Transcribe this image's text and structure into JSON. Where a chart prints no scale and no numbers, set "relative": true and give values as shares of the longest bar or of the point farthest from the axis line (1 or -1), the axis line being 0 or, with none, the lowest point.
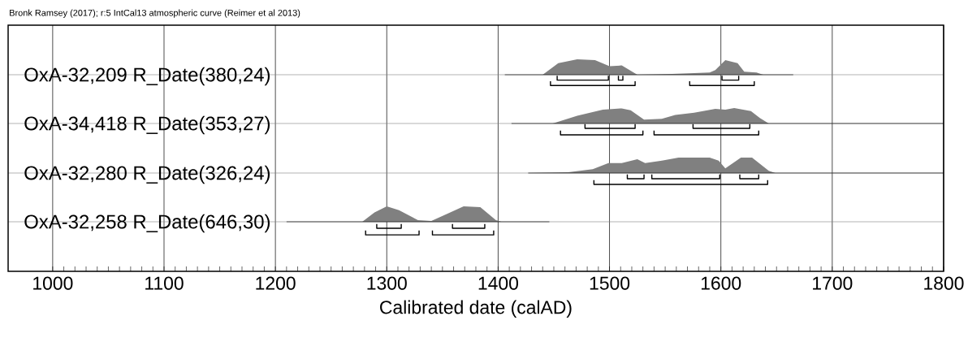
{
  "chart_data": [
    {
      "type": "area",
      "relative": true,
      "title": "Bronk Ramsey (2017); r:5 IntCal13 atmospheric curve (Reimer et al 2013)",
      "xlim": [
        960,
        1800
      ],
      "xticks": [
        1000,
        1100,
        1200,
        1300,
        1400,
        1500,
        1600,
        1700,
        1800
      ],
      "grid": "x",
      "tick_labels": false,
      "series": [
        {
          "name": "OxA-32,209 R_Date(380,24)",
          "color": "#808080",
          "x": [
            1406,
            1440,
            1454,
            1471,
            1487,
            1500,
            1511,
            1525,
            1556,
            1576,
            1590,
            1595,
            1604,
            1615,
            1621,
            1632,
            1638,
            1665
          ],
          "values": [
            0,
            0,
            0.75,
            1,
            0.95,
            0.55,
            0.6,
            0,
            0.05,
            0.1,
            0.15,
            0.3,
            0.95,
            0.75,
            0.2,
            0.15,
            0,
            0
          ]
        },
        {
          "type": "line",
          "color": "#000000",
          "x": [
            1453,
            1499,
            1500,
            1508,
            1512,
            1513,
            1601,
            1616
          ],
          "values": [
            -0.35,
            -0.35,
            null,
            -0.35,
            -0.35,
            null,
            -0.35,
            -0.35
          ]
        },
        {
          "type": "line",
          "color": "#000000",
          "x": [
            1447,
            1523,
            1524,
            1572,
            1630
          ],
          "values": [
            -0.7,
            -0.7,
            null,
            -0.7,
            -0.7
          ]
        }
      ]
    },
    {
      "type": "area",
      "relative": true,
      "xlim": [
        960,
        1800
      ],
      "xticks": [
        1000,
        1100,
        1200,
        1300,
        1400,
        1500,
        1600,
        1700,
        1800
      ],
      "grid": "x",
      "tick_labels": false,
      "series": [
        {
          "name": "OxA-34,418 R_Date(353,27)",
          "color": "#808080",
          "x": [
            1412,
            1449,
            1471,
            1494,
            1511,
            1519,
            1531,
            1547,
            1559,
            1576,
            1595,
            1604,
            1612,
            1627,
            1635,
            1643,
            1800
          ],
          "values": [
            0,
            0,
            0.5,
            0.9,
            0.98,
            0.85,
            0.25,
            0.3,
            0.55,
            0.7,
            0.95,
            0.9,
            1,
            0.8,
            0.35,
            0,
            0
          ]
        },
        {
          "type": "line",
          "color": "#000000",
          "x": [
            1478,
            1523,
            1524,
            1575,
            1626
          ],
          "values": [
            -0.32,
            -0.32,
            null,
            -0.32,
            -0.32
          ]
        },
        {
          "type": "line",
          "color": "#000000",
          "x": [
            1456,
            1530,
            1531,
            1540,
            1634
          ],
          "values": [
            -0.74,
            -0.74,
            null,
            -0.74,
            -0.74
          ]
        }
      ]
    },
    {
      "type": "area",
      "relative": true,
      "xlim": [
        960,
        1800
      ],
      "xticks": [
        1000,
        1100,
        1200,
        1300,
        1400,
        1500,
        1600,
        1700,
        1800
      ],
      "grid": "x",
      "tick_labels": false,
      "series": [
        {
          "name": "OxA-32,280 R_Date(326,24)",
          "color": "#808080",
          "x": [
            1427,
            1463,
            1485,
            1499,
            1511,
            1525,
            1532,
            1547,
            1562,
            1590,
            1598,
            1604,
            1618,
            1628,
            1643,
            1649,
            1800
          ],
          "values": [
            0,
            0.05,
            0.25,
            0.65,
            0.65,
            0.9,
            0.65,
            0.8,
            1,
            1,
            0.8,
            0.3,
            1,
            1,
            0.15,
            0,
            0
          ]
        },
        {
          "type": "line",
          "color": "#000000",
          "x": [
            1516,
            1531,
            1532,
            1538,
            1599,
            1600,
            1617,
            1634
          ],
          "values": [
            -0.37,
            -0.37,
            null,
            -0.37,
            -0.37,
            null,
            -0.37,
            -0.37
          ]
        },
        {
          "type": "line",
          "color": "#000000",
          "x": [
            1486,
            1642
          ],
          "values": [
            -0.74,
            -0.74
          ]
        }
      ]
    },
    {
      "type": "area",
      "relative": true,
      "xlabel": "Calibrated date (calAD)",
      "xlim": [
        960,
        1800
      ],
      "xticks": [
        1000,
        1100,
        1200,
        1300,
        1400,
        1500,
        1600,
        1700,
        1800
      ],
      "grid": "x",
      "tick_labels": "x",
      "series": [
        {
          "name": "OxA-32,258 R_Date(646,30)",
          "color": "#808080",
          "x": [
            1210,
            1278,
            1289,
            1300,
            1311,
            1328,
            1340,
            1357,
            1369,
            1384,
            1398,
            1403,
            1446
          ],
          "values": [
            0,
            0,
            0.6,
            1,
            0.75,
            0.1,
            0.05,
            0.6,
            1,
            0.95,
            0.1,
            0,
            0
          ]
        },
        {
          "type": "line",
          "color": "#000000",
          "x": [
            1291,
            1313,
            1314,
            1359,
            1388
          ],
          "values": [
            -0.42,
            -0.42,
            null,
            -0.42,
            -0.42
          ]
        },
        {
          "type": "line",
          "color": "#000000",
          "x": [
            1281,
            1329,
            1330,
            1341,
            1396
          ],
          "values": [
            -0.85,
            -0.85,
            null,
            -0.85,
            -0.85
          ]
        }
      ]
    }
  ]
}
